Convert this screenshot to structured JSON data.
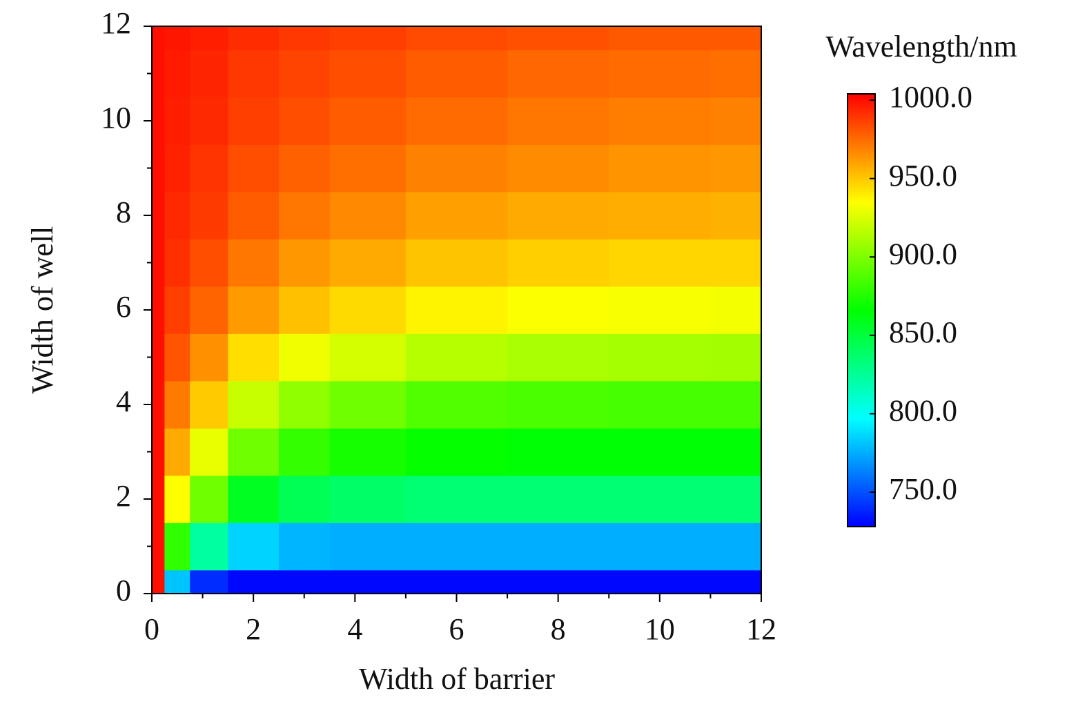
{
  "chart_data": {
    "type": "heatmap",
    "xlabel": "Width of barrier",
    "ylabel": "Width of well",
    "colorbar_label": "Wavelength/nm",
    "x": [
      0,
      0.5,
      1,
      2,
      3,
      4,
      6,
      8,
      10,
      12
    ],
    "y": [
      0,
      1,
      2,
      3,
      4,
      5,
      6,
      7,
      8,
      9,
      10,
      11,
      12
    ],
    "z": [
      [
        1000,
        781,
        740,
        730,
        730,
        730,
        730,
        730,
        730,
        730
      ],
      [
        1000,
        879,
        823,
        785,
        777,
        775,
        775,
        775,
        775,
        775
      ],
      [
        1000,
        935,
        896,
        857,
        843,
        838,
        835,
        835,
        835,
        835
      ],
      [
        1000,
        958,
        929,
        896,
        880,
        872,
        867,
        865,
        865,
        865
      ],
      [
        1000,
        971,
        949,
        920,
        905,
        896,
        888,
        886,
        885,
        885
      ],
      [
        1000,
        981,
        965,
        944,
        931,
        923,
        915,
        912,
        911,
        910
      ],
      [
        1000,
        987,
        977,
        962,
        952,
        945,
        938,
        934,
        933,
        932
      ],
      [
        1000,
        991,
        983,
        972,
        963,
        958,
        951,
        948,
        946,
        946
      ],
      [
        1000,
        993,
        988,
        979,
        972,
        967,
        961,
        958,
        957,
        956
      ],
      [
        1000,
        995,
        990,
        983,
        978,
        974,
        969,
        966,
        964,
        963
      ],
      [
        1000,
        996,
        993,
        987,
        983,
        979,
        975,
        972,
        970,
        969
      ],
      [
        1000,
        997,
        994,
        989,
        986,
        983,
        979,
        976,
        975,
        974
      ],
      [
        1000,
        998,
        996,
        992,
        989,
        987,
        984,
        982,
        980,
        980
      ]
    ],
    "colorscale": [
      "#0000ff",
      "#00ffff",
      "#00ff00",
      "#ffff00",
      "#ff0000"
    ],
    "xlim": [
      0,
      12
    ],
    "ylim": [
      0,
      12
    ],
    "xticks": [
      0,
      2,
      4,
      6,
      8,
      10,
      12
    ],
    "yticks": [
      0,
      2,
      4,
      6,
      8,
      10,
      12
    ],
    "xminorticks": [
      1,
      3,
      5,
      7,
      9,
      11
    ],
    "yminorticks": [
      1,
      3,
      5,
      7,
      9,
      11
    ],
    "zlim": [
      728,
      1004
    ],
    "zticks": [
      {
        "value": 750,
        "label": "750.0"
      },
      {
        "value": 800,
        "label": "800.0"
      },
      {
        "value": 850,
        "label": "850.0"
      },
      {
        "value": 900,
        "label": "900.0"
      },
      {
        "value": 950,
        "label": "950.0"
      },
      {
        "value": 1000,
        "label": "1000.0"
      }
    ]
  }
}
